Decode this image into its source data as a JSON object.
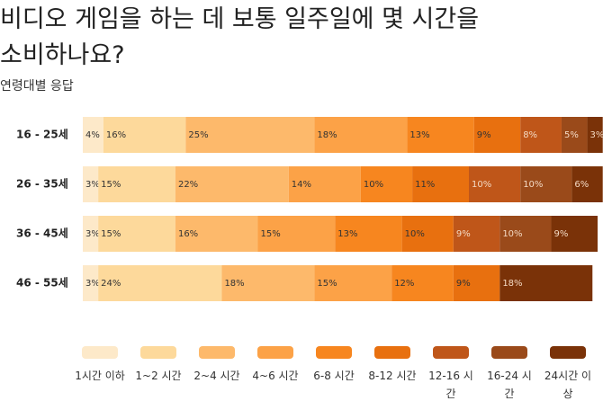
{
  "chart_data": {
    "type": "stacked-bar-horizontal",
    "title": "비디오 게임을 하는 데 보통 일주일에 몇 시간을 소비하나요?",
    "subtitle": "연령대별 응답",
    "categories": [
      "16 - 25세",
      "26 - 35세",
      "36 - 45세",
      "46 - 55세"
    ],
    "series": [
      {
        "name": "1시간 이하",
        "color": "#fde9c9",
        "values": [
          4,
          3,
          3,
          3
        ],
        "value_labels": [
          "4%",
          "3%",
          "3%",
          "3%"
        ]
      },
      {
        "name": "1~2 시간",
        "color": "#fdd99b",
        "values": [
          16,
          15,
          15,
          24
        ],
        "value_labels": [
          "16%",
          "15%",
          "15%",
          "24%"
        ]
      },
      {
        "name": "2~4 시간",
        "color": "#fdb96b",
        "values": [
          25,
          22,
          16,
          18
        ],
        "value_labels": [
          "25%",
          "22%",
          "16%",
          "18%"
        ]
      },
      {
        "name": "4~6 시간",
        "color": "#fca247",
        "values": [
          18,
          14,
          15,
          15
        ],
        "value_labels": [
          "18%",
          "14%",
          "15%",
          "15%"
        ]
      },
      {
        "name": "6-8 시간",
        "color": "#f7861f",
        "values": [
          13,
          10,
          13,
          12
        ],
        "value_labels": [
          "13%",
          "10%",
          "13%",
          "12%"
        ]
      },
      {
        "name": "8-12 시간",
        "color": "#e8700f",
        "values": [
          9,
          11,
          10,
          9
        ],
        "value_labels": [
          "9%",
          "11%",
          "10%",
          "9%"
        ]
      },
      {
        "name": "12-16 시간",
        "color": "#bf5619",
        "values": [
          8,
          10,
          9,
          null
        ],
        "value_labels": [
          "8%",
          "10%",
          "9%",
          null
        ]
      },
      {
        "name": "16-24 시간",
        "color": "#9a4a1a",
        "values": [
          5,
          10,
          10,
          null
        ],
        "value_labels": [
          "5%",
          "10%",
          "10%",
          null
        ]
      },
      {
        "name": "24시간 이상",
        "color": "#7a3208",
        "values": [
          3,
          6,
          9,
          18
        ],
        "value_labels": [
          "3%",
          "6%",
          "9%",
          "18%"
        ]
      }
    ]
  }
}
